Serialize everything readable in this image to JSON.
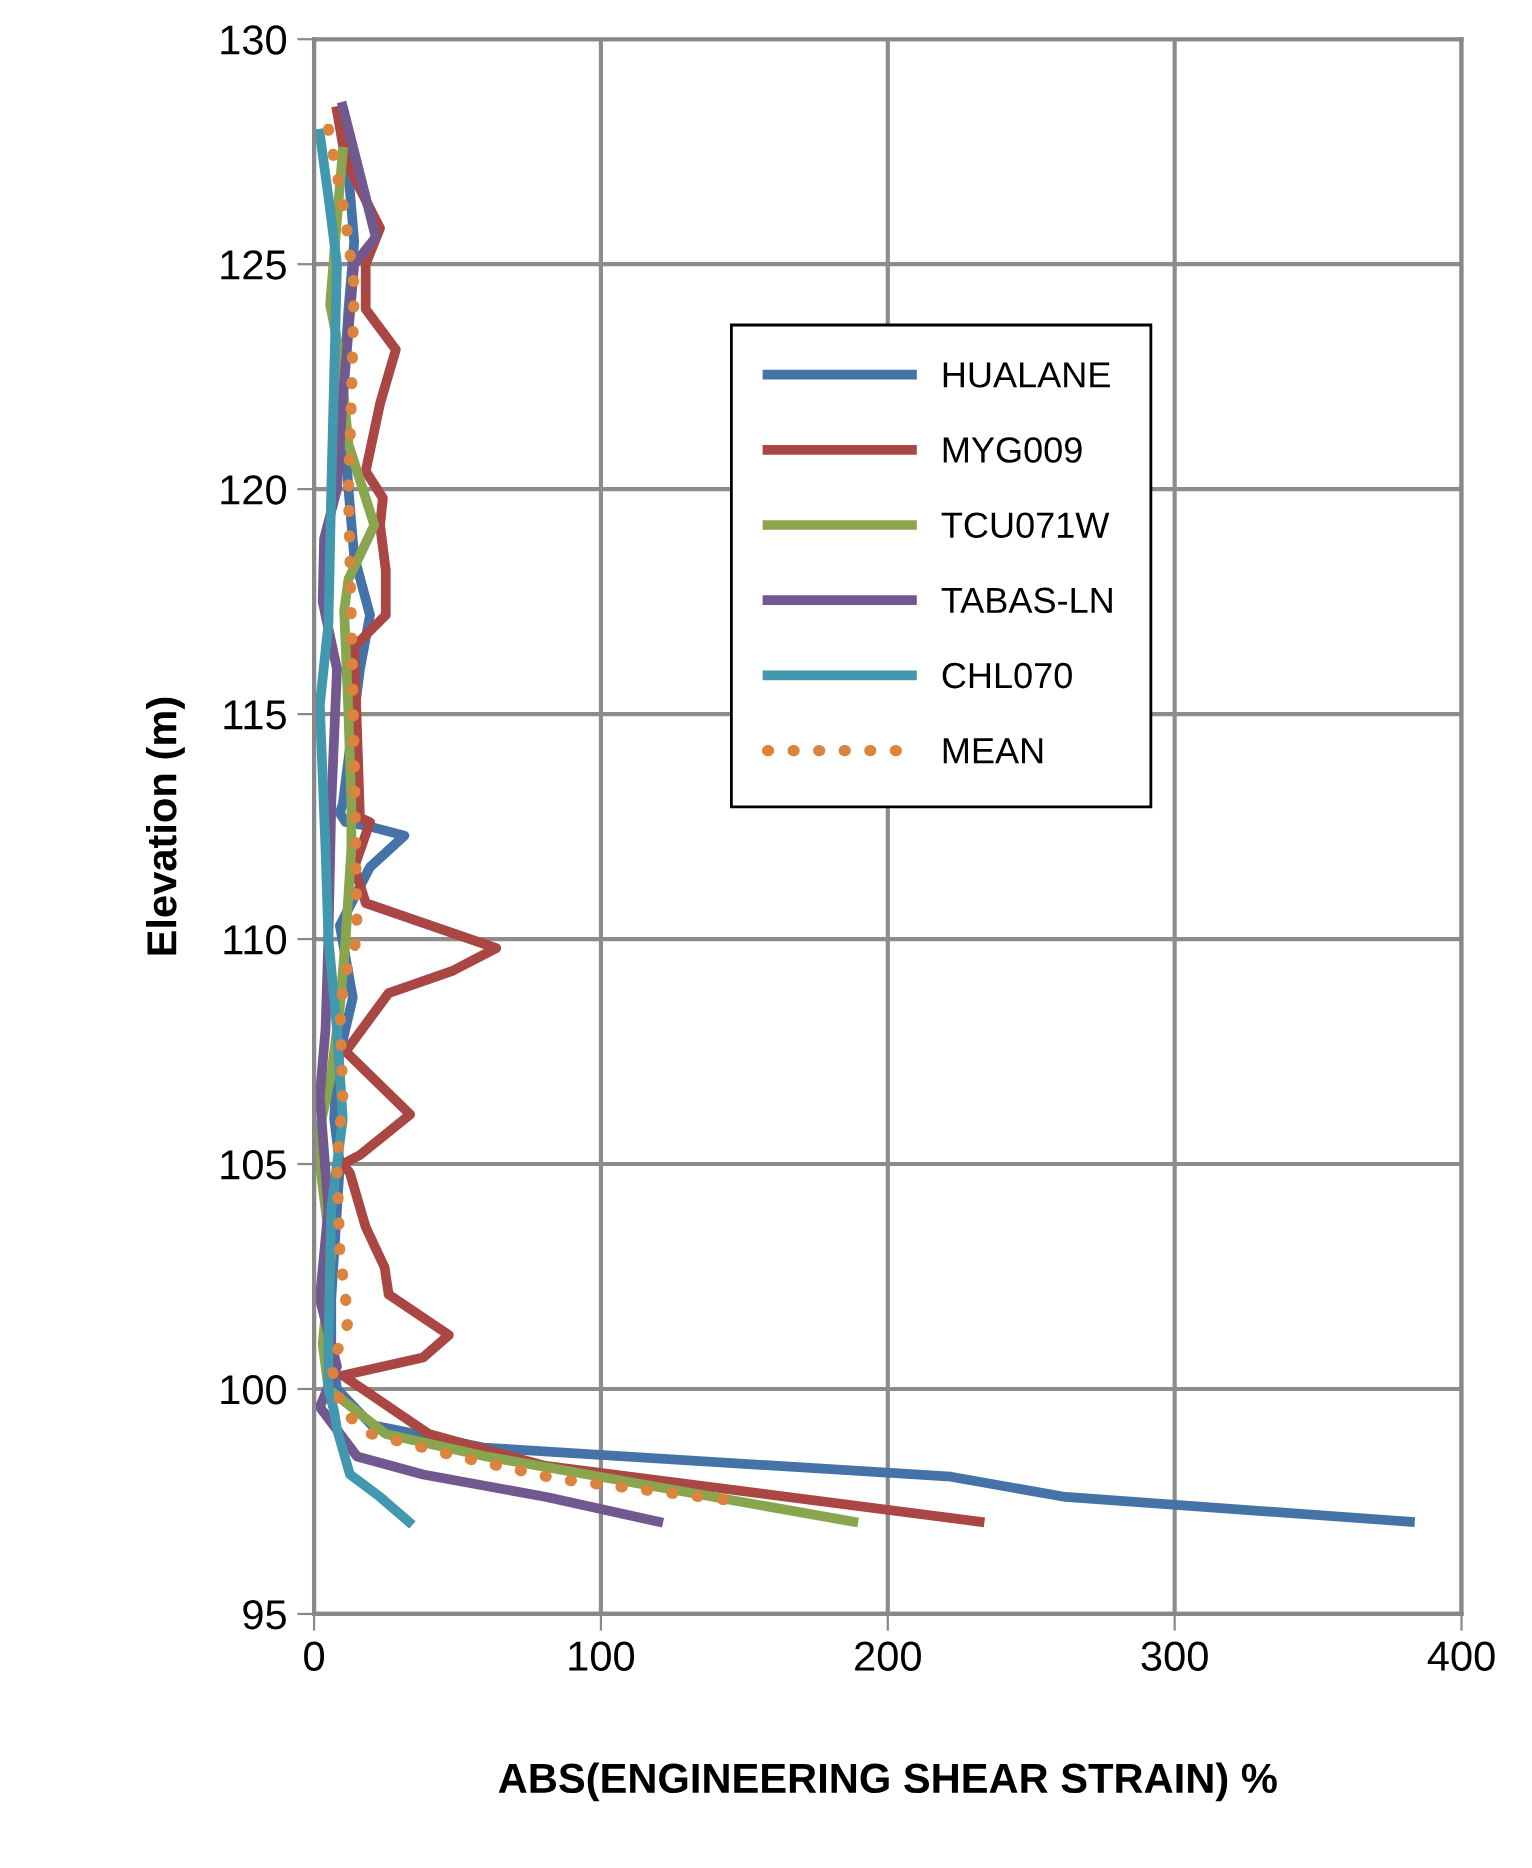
{
  "chart_data": {
    "type": "line",
    "xlabel": "ABS(ENGINEERING SHEAR STRAIN) %",
    "ylabel": "Elevation (m)",
    "xlim": [
      0,
      400
    ],
    "xticks": [
      0,
      100,
      200,
      300,
      400
    ],
    "ylim": [
      95,
      130
    ],
    "yticks": [
      95,
      100,
      105,
      110,
      115,
      120,
      125,
      130
    ],
    "grid": true,
    "legend": "top right",
    "line_style": "solid",
    "marker": "none",
    "series": [
      {
        "name": "HUALANE",
        "color": "#4572a7",
        "x": [
          10,
          12,
          14,
          12,
          10,
          12,
          14,
          19.5,
          16,
          12,
          10,
          9,
          11,
          19.5,
          31.5,
          19.5,
          9,
          13.5,
          8,
          7,
          9,
          8,
          7,
          6,
          6,
          8,
          20,
          59,
          222,
          262,
          382
        ],
        "values": [
          128.4,
          127,
          125.5,
          124,
          122,
          120,
          118.5,
          117.2,
          116,
          114,
          113,
          112.8,
          112.6,
          112.5,
          112.3,
          111.6,
          110.3,
          108.7,
          107.2,
          106,
          105,
          104,
          103,
          102,
          101,
          100,
          99.2,
          98.7,
          98.05,
          97.6,
          97.05
        ]
      },
      {
        "name": "MYG009",
        "color": "#aa4643",
        "x": [
          8,
          11,
          23,
          18,
          18,
          28.5,
          23,
          18,
          24,
          23,
          25,
          25,
          14,
          16,
          19.5,
          14,
          18,
          63.5,
          48.5,
          26,
          11,
          33.5,
          16,
          10,
          12.5,
          18,
          24.6,
          26,
          47,
          38,
          10,
          40,
          80,
          232
        ],
        "values": [
          128.4,
          127.3,
          125.8,
          125,
          124,
          123.1,
          121.9,
          120.4,
          119.8,
          119.2,
          118.2,
          117.2,
          116.5,
          112.7,
          112.6,
          111.6,
          110.8,
          109.8,
          109.3,
          108.8,
          107.5,
          106.1,
          105.2,
          105,
          104.8,
          103.6,
          102.7,
          102.1,
          101.2,
          100.7,
          100.3,
          99,
          98.3,
          97.05
        ]
      },
      {
        "name": "TCU071W",
        "color": "#89a54e",
        "x": [
          10,
          8,
          5.6,
          9,
          12,
          21,
          12,
          10.5,
          12,
          13,
          13,
          11,
          9,
          6,
          1,
          6,
          3,
          5,
          25,
          60,
          188
        ],
        "values": [
          127.5,
          126,
          124.1,
          123,
          121,
          119.2,
          118,
          117.3,
          115,
          113,
          112,
          110,
          108.5,
          107,
          105.5,
          103,
          101,
          100,
          99,
          98.5,
          97.05
        ]
      },
      {
        "name": "TABAS-LN",
        "color": "#71588f",
        "x": [
          10,
          14,
          21.5,
          14,
          10,
          8,
          3.5,
          3,
          8,
          6,
          5,
          4,
          2,
          5,
          2,
          8,
          2,
          15,
          38,
          81,
          120
        ],
        "values": [
          128.5,
          127.5,
          125.6,
          125,
          122,
          120,
          118.9,
          117.5,
          116,
          113,
          110,
          108,
          106.5,
          104,
          102,
          100.5,
          99.6,
          98.5,
          98.1,
          97.6,
          97.05
        ]
      },
      {
        "name": "CHL070",
        "color": "#4198af",
        "x": [
          2,
          5,
          8,
          7,
          6,
          5,
          2,
          4,
          5,
          8,
          10,
          6,
          5,
          5,
          7,
          8,
          12.5,
          23,
          33
        ],
        "values": [
          127.9,
          126.5,
          125,
          122.5,
          120,
          117,
          115.2,
          112,
          110,
          108,
          106,
          104,
          101,
          100,
          99.5,
          99.1,
          98.1,
          97.6,
          97.05
        ]
      },
      {
        "name": "MEAN",
        "color": "#db843d",
        "line_style": "dotted",
        "x": [
          5,
          8,
          11,
          14,
          13,
          12,
          13,
          14,
          15,
          12,
          9,
          10,
          8,
          9,
          12,
          6,
          10,
          20,
          50,
          85,
          148
        ],
        "values": [
          128,
          127,
          126,
          124.5,
          122,
          120,
          117,
          114,
          110,
          109.5,
          108.5,
          106.5,
          105,
          103,
          101.5,
          100.5,
          99.5,
          99,
          98.5,
          98,
          97.5
        ]
      }
    ]
  }
}
